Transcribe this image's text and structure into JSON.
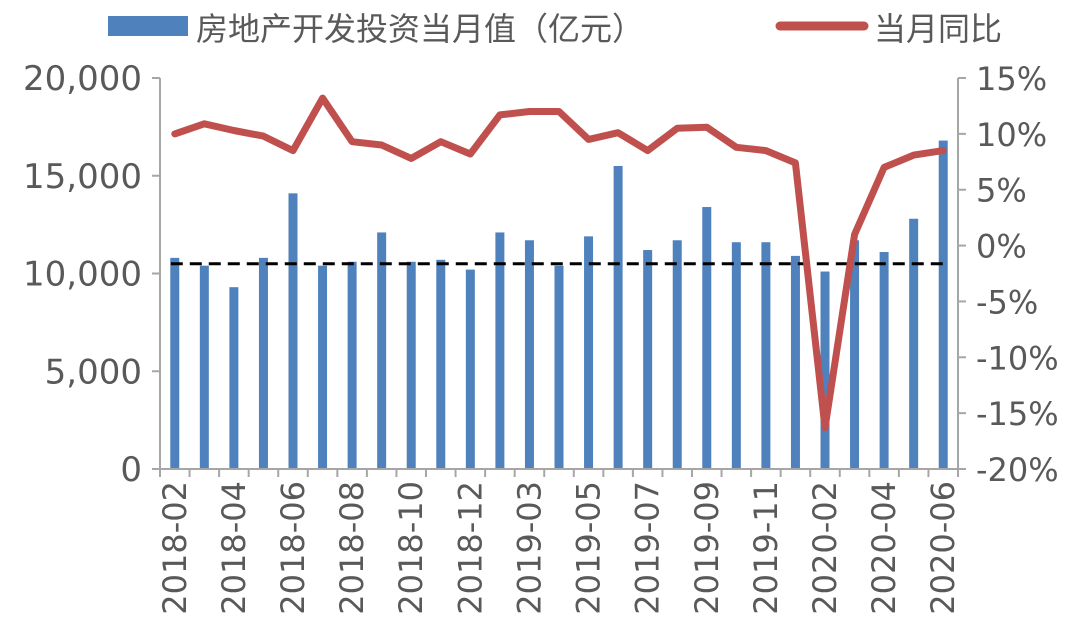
{
  "chart_data": {
    "type": "bar+line",
    "legend": {
      "position": "top",
      "items": [
        {
          "label": "房地产开发投资当月值（亿元）",
          "color": "#4F81BD",
          "kind": "bar"
        },
        {
          "label": "当月同比",
          "color": "#C0504D",
          "kind": "line"
        }
      ]
    },
    "categories": [
      "2018-02",
      "2018-03",
      "2018-04",
      "2018-05",
      "2018-06",
      "2018-07",
      "2018-08",
      "2018-09",
      "2018-10",
      "2018-11",
      "2018-12",
      "2019-01",
      "2019-03",
      "2019-04",
      "2019-05",
      "2019-06",
      "2019-07",
      "2019-08",
      "2019-09",
      "2019-10",
      "2019-11",
      "2019-12",
      "2020-02",
      "2020-03",
      "2020-04",
      "2020-05",
      "2020-06"
    ],
    "x_tick_labels": [
      "2018-02",
      "",
      "2018-04",
      "",
      "2018-06",
      "",
      "2018-08",
      "",
      "2018-10",
      "",
      "2018-12",
      "",
      "2019-03",
      "",
      "2019-05",
      "",
      "2019-07",
      "",
      "2019-09",
      "",
      "2019-11",
      "",
      "2020-02",
      "",
      "2020-04",
      "",
      "2020-06"
    ],
    "series": [
      {
        "name": "房地产开发投资当月值（亿元）",
        "type": "bar",
        "axis": "left",
        "values": [
          10800,
          10400,
          9300,
          10800,
          14100,
          10400,
          10600,
          12100,
          10600,
          10700,
          10200,
          12100,
          11700,
          10400,
          11900,
          15500,
          11200,
          11700,
          13400,
          11600,
          11600,
          10900,
          10100,
          11700,
          11100,
          12800,
          16800
        ]
      },
      {
        "name": "当月同比",
        "type": "line",
        "axis": "right",
        "values": [
          10.0,
          10.9,
          10.3,
          9.8,
          8.5,
          13.2,
          9.3,
          9.0,
          7.8,
          9.3,
          8.2,
          11.7,
          12.0,
          12.0,
          9.5,
          10.1,
          8.5,
          10.5,
          10.6,
          8.8,
          8.5,
          7.4,
          -16.3,
          1.0,
          7.0,
          8.1,
          8.5
        ]
      }
    ],
    "reference_line": {
      "value": 10500,
      "axis": "left",
      "style": "dashed",
      "color": "#000000"
    },
    "y_left": {
      "min": 0,
      "max": 20000,
      "ticks": [
        "0",
        "5,000",
        "10,000",
        "15,000",
        "20,000"
      ],
      "tick_values": [
        0,
        5000,
        10000,
        15000,
        20000
      ]
    },
    "y_right": {
      "min": -20,
      "max": 15,
      "ticks": [
        "-20%",
        "-15%",
        "-10%",
        "-5%",
        "0%",
        "5%",
        "10%",
        "15%"
      ],
      "tick_values": [
        -20,
        -15,
        -10,
        -5,
        0,
        5,
        10,
        15
      ]
    },
    "grid": false,
    "colors": {
      "bar": "#4F81BD",
      "line": "#C0504D",
      "axis": "#A6A6A6",
      "text": "#595959"
    }
  }
}
